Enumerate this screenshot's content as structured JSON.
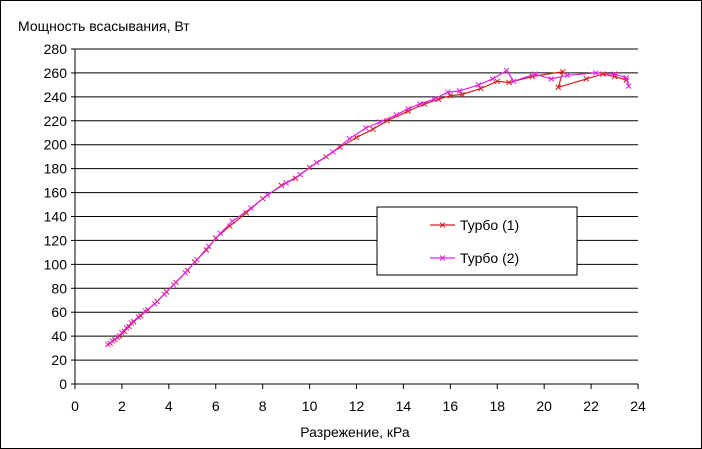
{
  "chart_data": {
    "type": "line",
    "ylabel": "Мощность всасывания, Вт",
    "xlabel": "Разрежение, кРа",
    "xlim": [
      0,
      24
    ],
    "ylim": [
      0,
      280
    ],
    "xticks": [
      0,
      2,
      4,
      6,
      8,
      10,
      12,
      14,
      16,
      18,
      20,
      22,
      24
    ],
    "yticks": [
      0,
      20,
      40,
      60,
      80,
      100,
      120,
      140,
      160,
      180,
      200,
      220,
      240,
      260,
      280
    ],
    "grid": "horizontal",
    "legend_position": "center-right",
    "series": [
      {
        "name": "Турбо (1)",
        "color": "#d42020",
        "marker": "x",
        "points": [
          [
            1.5,
            34
          ],
          [
            1.7,
            37
          ],
          [
            1.9,
            40
          ],
          [
            2.1,
            44
          ],
          [
            2.3,
            48
          ],
          [
            2.5,
            52
          ],
          [
            2.8,
            57
          ],
          [
            3.1,
            62
          ],
          [
            3.5,
            69
          ],
          [
            3.9,
            77
          ],
          [
            4.3,
            85
          ],
          [
            4.8,
            95
          ],
          [
            5.1,
            102
          ],
          [
            5.6,
            112
          ],
          [
            6.0,
            122
          ],
          [
            6.6,
            132
          ],
          [
            7.3,
            143
          ],
          [
            8.0,
            155
          ],
          [
            8.8,
            166
          ],
          [
            9.4,
            172
          ],
          [
            10.0,
            181
          ],
          [
            10.7,
            190
          ],
          [
            11.3,
            198
          ],
          [
            12.0,
            206
          ],
          [
            12.7,
            213
          ],
          [
            13.3,
            220
          ],
          [
            14.2,
            228
          ],
          [
            14.9,
            234
          ],
          [
            15.5,
            238
          ],
          [
            16.0,
            241
          ],
          [
            16.5,
            242
          ],
          [
            17.3,
            247
          ],
          [
            18.0,
            253
          ],
          [
            18.5,
            252
          ],
          [
            19.5,
            257
          ],
          [
            20.8,
            261
          ],
          [
            20.6,
            248
          ],
          [
            21.8,
            255
          ],
          [
            22.5,
            259
          ],
          [
            23.0,
            257
          ],
          [
            23.5,
            254
          ]
        ]
      },
      {
        "name": "Турбо (2)",
        "color": "#e020e0",
        "marker": "x",
        "points": [
          [
            1.4,
            33
          ],
          [
            1.6,
            36
          ],
          [
            1.8,
            39
          ],
          [
            2.0,
            43
          ],
          [
            2.2,
            47
          ],
          [
            2.4,
            51
          ],
          [
            2.7,
            56
          ],
          [
            3.0,
            61
          ],
          [
            3.4,
            67
          ],
          [
            3.8,
            75
          ],
          [
            4.2,
            83
          ],
          [
            4.7,
            93
          ],
          [
            5.2,
            104
          ],
          [
            5.7,
            115
          ],
          [
            6.2,
            126
          ],
          [
            6.7,
            136
          ],
          [
            7.5,
            147
          ],
          [
            8.2,
            158
          ],
          [
            9.0,
            168
          ],
          [
            9.6,
            175
          ],
          [
            10.3,
            185
          ],
          [
            11.0,
            194
          ],
          [
            11.7,
            205
          ],
          [
            12.4,
            214
          ],
          [
            13.0,
            219
          ],
          [
            13.7,
            225
          ],
          [
            14.2,
            230
          ],
          [
            14.7,
            234
          ],
          [
            15.3,
            238
          ],
          [
            15.9,
            244
          ],
          [
            16.4,
            245
          ],
          [
            17.2,
            250
          ],
          [
            17.8,
            255
          ],
          [
            18.4,
            262
          ],
          [
            18.7,
            253
          ],
          [
            19.6,
            259
          ],
          [
            20.3,
            255
          ],
          [
            21.0,
            258
          ],
          [
            22.2,
            260
          ],
          [
            23.0,
            259
          ],
          [
            23.5,
            256
          ],
          [
            23.6,
            249
          ]
        ]
      }
    ]
  }
}
